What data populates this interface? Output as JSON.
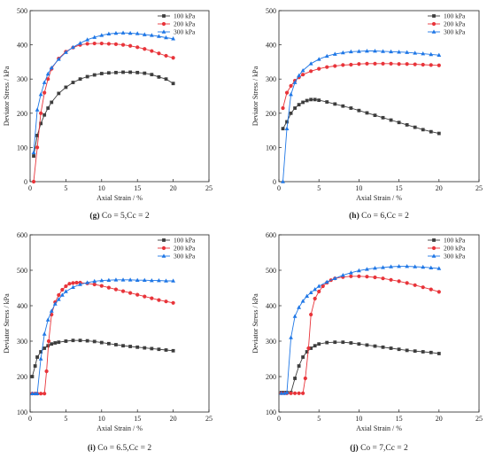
{
  "colors": {
    "100 kPa": "#3d3d3d",
    "200 kPa": "#e8343a",
    "300 kPa": "#1f77e6"
  },
  "chart_data": [
    {
      "id": "g",
      "type": "line",
      "caption": {
        "label": "(g)",
        "text": "Co = 5,Cc = 2"
      },
      "xlabel": "Axial Strain / %",
      "ylabel": "Deviator Stress / kPa",
      "xlim": [
        0,
        25
      ],
      "ylim": [
        0,
        500
      ],
      "xticks": [
        0,
        5,
        10,
        15,
        20,
        25
      ],
      "yticks": [
        0,
        100,
        200,
        300,
        400,
        500
      ],
      "legend": "top-right",
      "series": [
        {
          "name": "100 kPa",
          "marker": "square",
          "x": [
            0.5,
            1,
            1.5,
            2,
            2.5,
            3,
            4,
            5,
            6,
            7,
            8,
            9,
            10,
            11,
            12,
            13,
            14,
            15,
            16,
            17,
            18,
            19,
            20
          ],
          "y": [
            75,
            135,
            170,
            195,
            215,
            232,
            258,
            276,
            290,
            300,
            307,
            312,
            316,
            318,
            319,
            320,
            320,
            319,
            317,
            313,
            306,
            300,
            287
          ]
        },
        {
          "name": "200 kPa",
          "marker": "circle",
          "x": [
            0.5,
            1,
            1.5,
            2,
            2.5,
            3,
            4,
            5,
            6,
            7,
            8,
            9,
            10,
            11,
            12,
            13,
            14,
            15,
            16,
            17,
            18,
            19,
            20
          ],
          "y": [
            0,
            100,
            200,
            260,
            300,
            330,
            360,
            380,
            392,
            400,
            403,
            404,
            404,
            403,
            402,
            400,
            397,
            393,
            388,
            382,
            375,
            368,
            362
          ]
        },
        {
          "name": "300 kPa",
          "marker": "triangle",
          "x": [
            0.5,
            1,
            1.5,
            2,
            2.5,
            3,
            4,
            5,
            6,
            7,
            8,
            9,
            10,
            11,
            12,
            13,
            14,
            15,
            16,
            17,
            18,
            19,
            20
          ],
          "y": [
            85,
            210,
            255,
            290,
            315,
            333,
            358,
            378,
            393,
            405,
            415,
            422,
            428,
            432,
            434,
            435,
            434,
            433,
            430,
            428,
            425,
            421,
            418
          ]
        }
      ]
    },
    {
      "id": "h",
      "type": "line",
      "caption": {
        "label": "(h)",
        "text": "Co = 6,Cc = 2"
      },
      "xlabel": "Axial Strain / %",
      "ylabel": "Deviator Stress / kPa",
      "xlim": [
        0,
        25
      ],
      "ylim": [
        0,
        500
      ],
      "xticks": [
        0,
        5,
        10,
        15,
        20,
        25
      ],
      "yticks": [
        0,
        100,
        200,
        300,
        400,
        500
      ],
      "legend": "top-right",
      "series": [
        {
          "name": "100 kPa",
          "marker": "square",
          "x": [
            0.5,
            1,
            1.5,
            2,
            2.5,
            3,
            3.5,
            4,
            4.5,
            5,
            6,
            7,
            8,
            9,
            10,
            11,
            12,
            13,
            14,
            15,
            16,
            17,
            18,
            19,
            20
          ],
          "y": [
            155,
            175,
            200,
            215,
            225,
            232,
            237,
            240,
            240,
            238,
            233,
            227,
            221,
            215,
            208,
            201,
            194,
            187,
            180,
            173,
            166,
            159,
            152,
            146,
            141
          ]
        },
        {
          "name": "200 kPa",
          "marker": "circle",
          "x": [
            0.5,
            1,
            1.5,
            2,
            2.5,
            3,
            4,
            5,
            6,
            7,
            8,
            9,
            10,
            11,
            12,
            13,
            14,
            15,
            16,
            17,
            18,
            19,
            20
          ],
          "y": [
            215,
            260,
            280,
            295,
            305,
            313,
            323,
            330,
            335,
            338,
            341,
            342,
            344,
            345,
            345,
            345,
            345,
            344,
            344,
            343,
            342,
            341,
            340
          ]
        },
        {
          "name": "300 kPa",
          "marker": "triangle",
          "x": [
            0.5,
            1,
            1.5,
            2,
            2.5,
            3,
            4,
            5,
            6,
            7,
            8,
            9,
            10,
            11,
            12,
            13,
            14,
            15,
            16,
            17,
            18,
            19,
            20
          ],
          "y": [
            0,
            155,
            255,
            290,
            310,
            325,
            345,
            358,
            367,
            373,
            377,
            380,
            381,
            382,
            382,
            381,
            380,
            379,
            378,
            376,
            374,
            372,
            370
          ]
        }
      ]
    },
    {
      "id": "i",
      "type": "line",
      "caption": {
        "label": "(i)",
        "text": "Co = 6.5,Cc = 2"
      },
      "xlabel": "Axial Strain / %",
      "ylabel": "Deviator Stress / kPa",
      "xlim": [
        0,
        25
      ],
      "ylim": [
        100,
        600
      ],
      "xticks": [
        0,
        5,
        10,
        15,
        20,
        25
      ],
      "yticks": [
        100,
        200,
        300,
        400,
        500,
        600
      ],
      "legend": "top-right",
      "series": [
        {
          "name": "100 kPa",
          "marker": "square",
          "x": [
            0.3,
            0.7,
            1,
            1.5,
            2,
            2.5,
            3,
            3.5,
            4,
            5,
            6,
            7,
            8,
            9,
            10,
            11,
            12,
            13,
            14,
            15,
            16,
            17,
            18,
            19,
            20
          ],
          "y": [
            200,
            230,
            255,
            270,
            280,
            287,
            292,
            295,
            297,
            300,
            302,
            302,
            301,
            299,
            296,
            293,
            290,
            287,
            285,
            283,
            281,
            279,
            277,
            275,
            273
          ]
        },
        {
          "name": "200 kPa",
          "marker": "circle",
          "x": [
            0.3,
            0.7,
            1,
            1.5,
            2,
            2.3,
            2.6,
            3,
            3.5,
            4,
            4.5,
            5,
            5.5,
            6,
            6.5,
            7,
            8,
            9,
            10,
            11,
            12,
            13,
            14,
            15,
            16,
            17,
            18,
            19,
            20
          ],
          "y": [
            152,
            152,
            152,
            152,
            152,
            215,
            300,
            375,
            410,
            430,
            445,
            455,
            462,
            464,
            465,
            465,
            463,
            460,
            456,
            451,
            446,
            441,
            436,
            431,
            426,
            421,
            416,
            412,
            408
          ]
        },
        {
          "name": "300 kPa",
          "marker": "triangle",
          "x": [
            0.3,
            0.7,
            1,
            1.5,
            2,
            2.5,
            3,
            3.5,
            4,
            4.5,
            5,
            6,
            7,
            8,
            9,
            10,
            11,
            12,
            13,
            14,
            15,
            16,
            17,
            18,
            19,
            20
          ],
          "y": [
            152,
            152,
            152,
            250,
            320,
            360,
            385,
            405,
            418,
            430,
            440,
            452,
            460,
            465,
            469,
            471,
            472,
            473,
            473,
            473,
            472,
            472,
            471,
            471,
            470,
            470
          ]
        }
      ]
    },
    {
      "id": "j",
      "type": "line",
      "caption": {
        "label": "(j)",
        "text": "Co = 7,Cc = 2"
      },
      "xlabel": "Axial Strain / %",
      "ylabel": "Deviator Stress / kPa",
      "xlim": [
        0,
        25
      ],
      "ylim": [
        100,
        600
      ],
      "xticks": [
        0,
        5,
        10,
        15,
        20,
        25
      ],
      "yticks": [
        100,
        200,
        300,
        400,
        500,
        600
      ],
      "legend": "top-right",
      "series": [
        {
          "name": "100 kPa",
          "marker": "square",
          "x": [
            0.3,
            0.7,
            1,
            1.5,
            2,
            2.5,
            3,
            3.5,
            4,
            4.5,
            5,
            6,
            7,
            8,
            9,
            10,
            11,
            12,
            13,
            14,
            15,
            16,
            17,
            18,
            19,
            20
          ],
          "y": [
            155,
            155,
            155,
            155,
            195,
            230,
            255,
            270,
            280,
            287,
            292,
            296,
            297,
            297,
            295,
            292,
            289,
            286,
            283,
            280,
            277,
            274,
            272,
            270,
            268,
            265
          ]
        },
        {
          "name": "200 kPa",
          "marker": "circle",
          "x": [
            0.3,
            0.7,
            1,
            1.5,
            2,
            2.5,
            3,
            3.3,
            3.7,
            4,
            4.5,
            5,
            5.5,
            6,
            6.5,
            7,
            8,
            9,
            10,
            11,
            12,
            13,
            14,
            15,
            16,
            17,
            18,
            19,
            20
          ],
          "y": [
            153,
            153,
            153,
            153,
            153,
            153,
            153,
            195,
            280,
            375,
            420,
            440,
            455,
            465,
            472,
            477,
            481,
            483,
            483,
            482,
            480,
            477,
            473,
            469,
            464,
            458,
            452,
            446,
            439
          ]
        },
        {
          "name": "300 kPa",
          "marker": "triangle",
          "x": [
            0.3,
            0.7,
            1,
            1.5,
            2,
            2.5,
            3,
            3.5,
            4,
            4.5,
            5,
            6,
            7,
            8,
            9,
            10,
            11,
            12,
            13,
            14,
            15,
            16,
            17,
            18,
            19,
            20
          ],
          "y": [
            153,
            153,
            155,
            310,
            370,
            395,
            413,
            427,
            437,
            446,
            455,
            467,
            477,
            486,
            493,
            499,
            503,
            506,
            508,
            510,
            511,
            511,
            510,
            509,
            507,
            505
          ]
        }
      ]
    }
  ]
}
